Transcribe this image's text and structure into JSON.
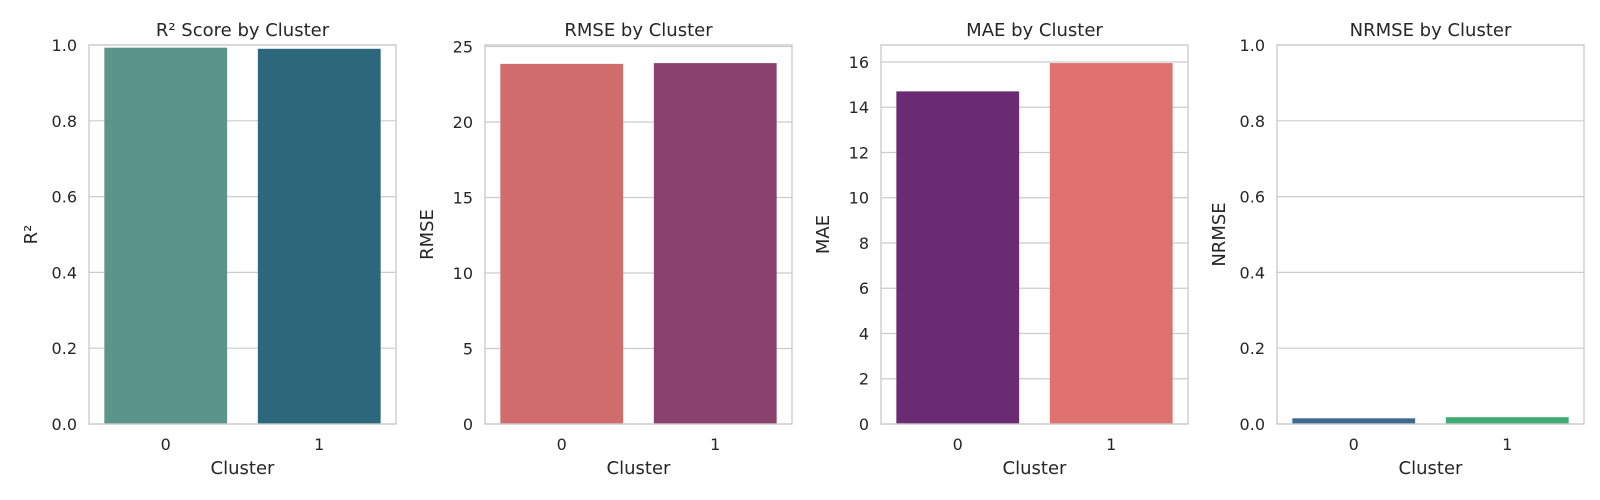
{
  "chart_data": [
    {
      "type": "bar",
      "title": "R² Score by Cluster",
      "xlabel": "Cluster",
      "ylabel": "R²",
      "categories": [
        "0",
        "1"
      ],
      "values": [
        0.993,
        0.99
      ],
      "colors": [
        "#5b9489",
        "#2d677c"
      ],
      "ylim": [
        0,
        1.0
      ],
      "yticks": [
        0.0,
        0.2,
        0.4,
        0.6,
        0.8,
        1.0
      ],
      "ytick_labels": [
        "0.0",
        "0.2",
        "0.4",
        "0.6",
        "0.8",
        "1.0"
      ],
      "grid": true
    },
    {
      "type": "bar",
      "title": "RMSE by Cluster",
      "xlabel": "Cluster",
      "ylabel": "RMSE",
      "categories": [
        "0",
        "1"
      ],
      "values": [
        23.85,
        23.9
      ],
      "colors": [
        "#d06c6b",
        "#8a416d"
      ],
      "ylim": [
        0,
        25.1
      ],
      "yticks": [
        0,
        5,
        10,
        15,
        20,
        25
      ],
      "ytick_labels": [
        "0",
        "5",
        "10",
        "15",
        "20",
        "25"
      ],
      "grid": true
    },
    {
      "type": "bar",
      "title": "MAE by Cluster",
      "xlabel": "Cluster",
      "ylabel": "MAE",
      "categories": [
        "0",
        "1"
      ],
      "values": [
        14.7,
        15.95
      ],
      "colors": [
        "#6a2b73",
        "#df716f"
      ],
      "ylim": [
        0,
        16.75
      ],
      "yticks": [
        0,
        2,
        4,
        6,
        8,
        10,
        12,
        14,
        16
      ],
      "ytick_labels": [
        "0",
        "2",
        "4",
        "6",
        "8",
        "10",
        "12",
        "14",
        "16"
      ],
      "grid": true
    },
    {
      "type": "bar",
      "title": "NRMSE by Cluster",
      "xlabel": "Cluster",
      "ylabel": "NRMSE",
      "categories": [
        "0",
        "1"
      ],
      "values": [
        0.015,
        0.018
      ],
      "colors": [
        "#3d6a8e",
        "#3fad72"
      ],
      "ylim": [
        0,
        1.0
      ],
      "yticks": [
        0.0,
        0.2,
        0.4,
        0.6,
        0.8,
        1.0
      ],
      "ytick_labels": [
        "0.0",
        "0.2",
        "0.4",
        "0.6",
        "0.8",
        "1.0"
      ],
      "grid": true
    }
  ]
}
